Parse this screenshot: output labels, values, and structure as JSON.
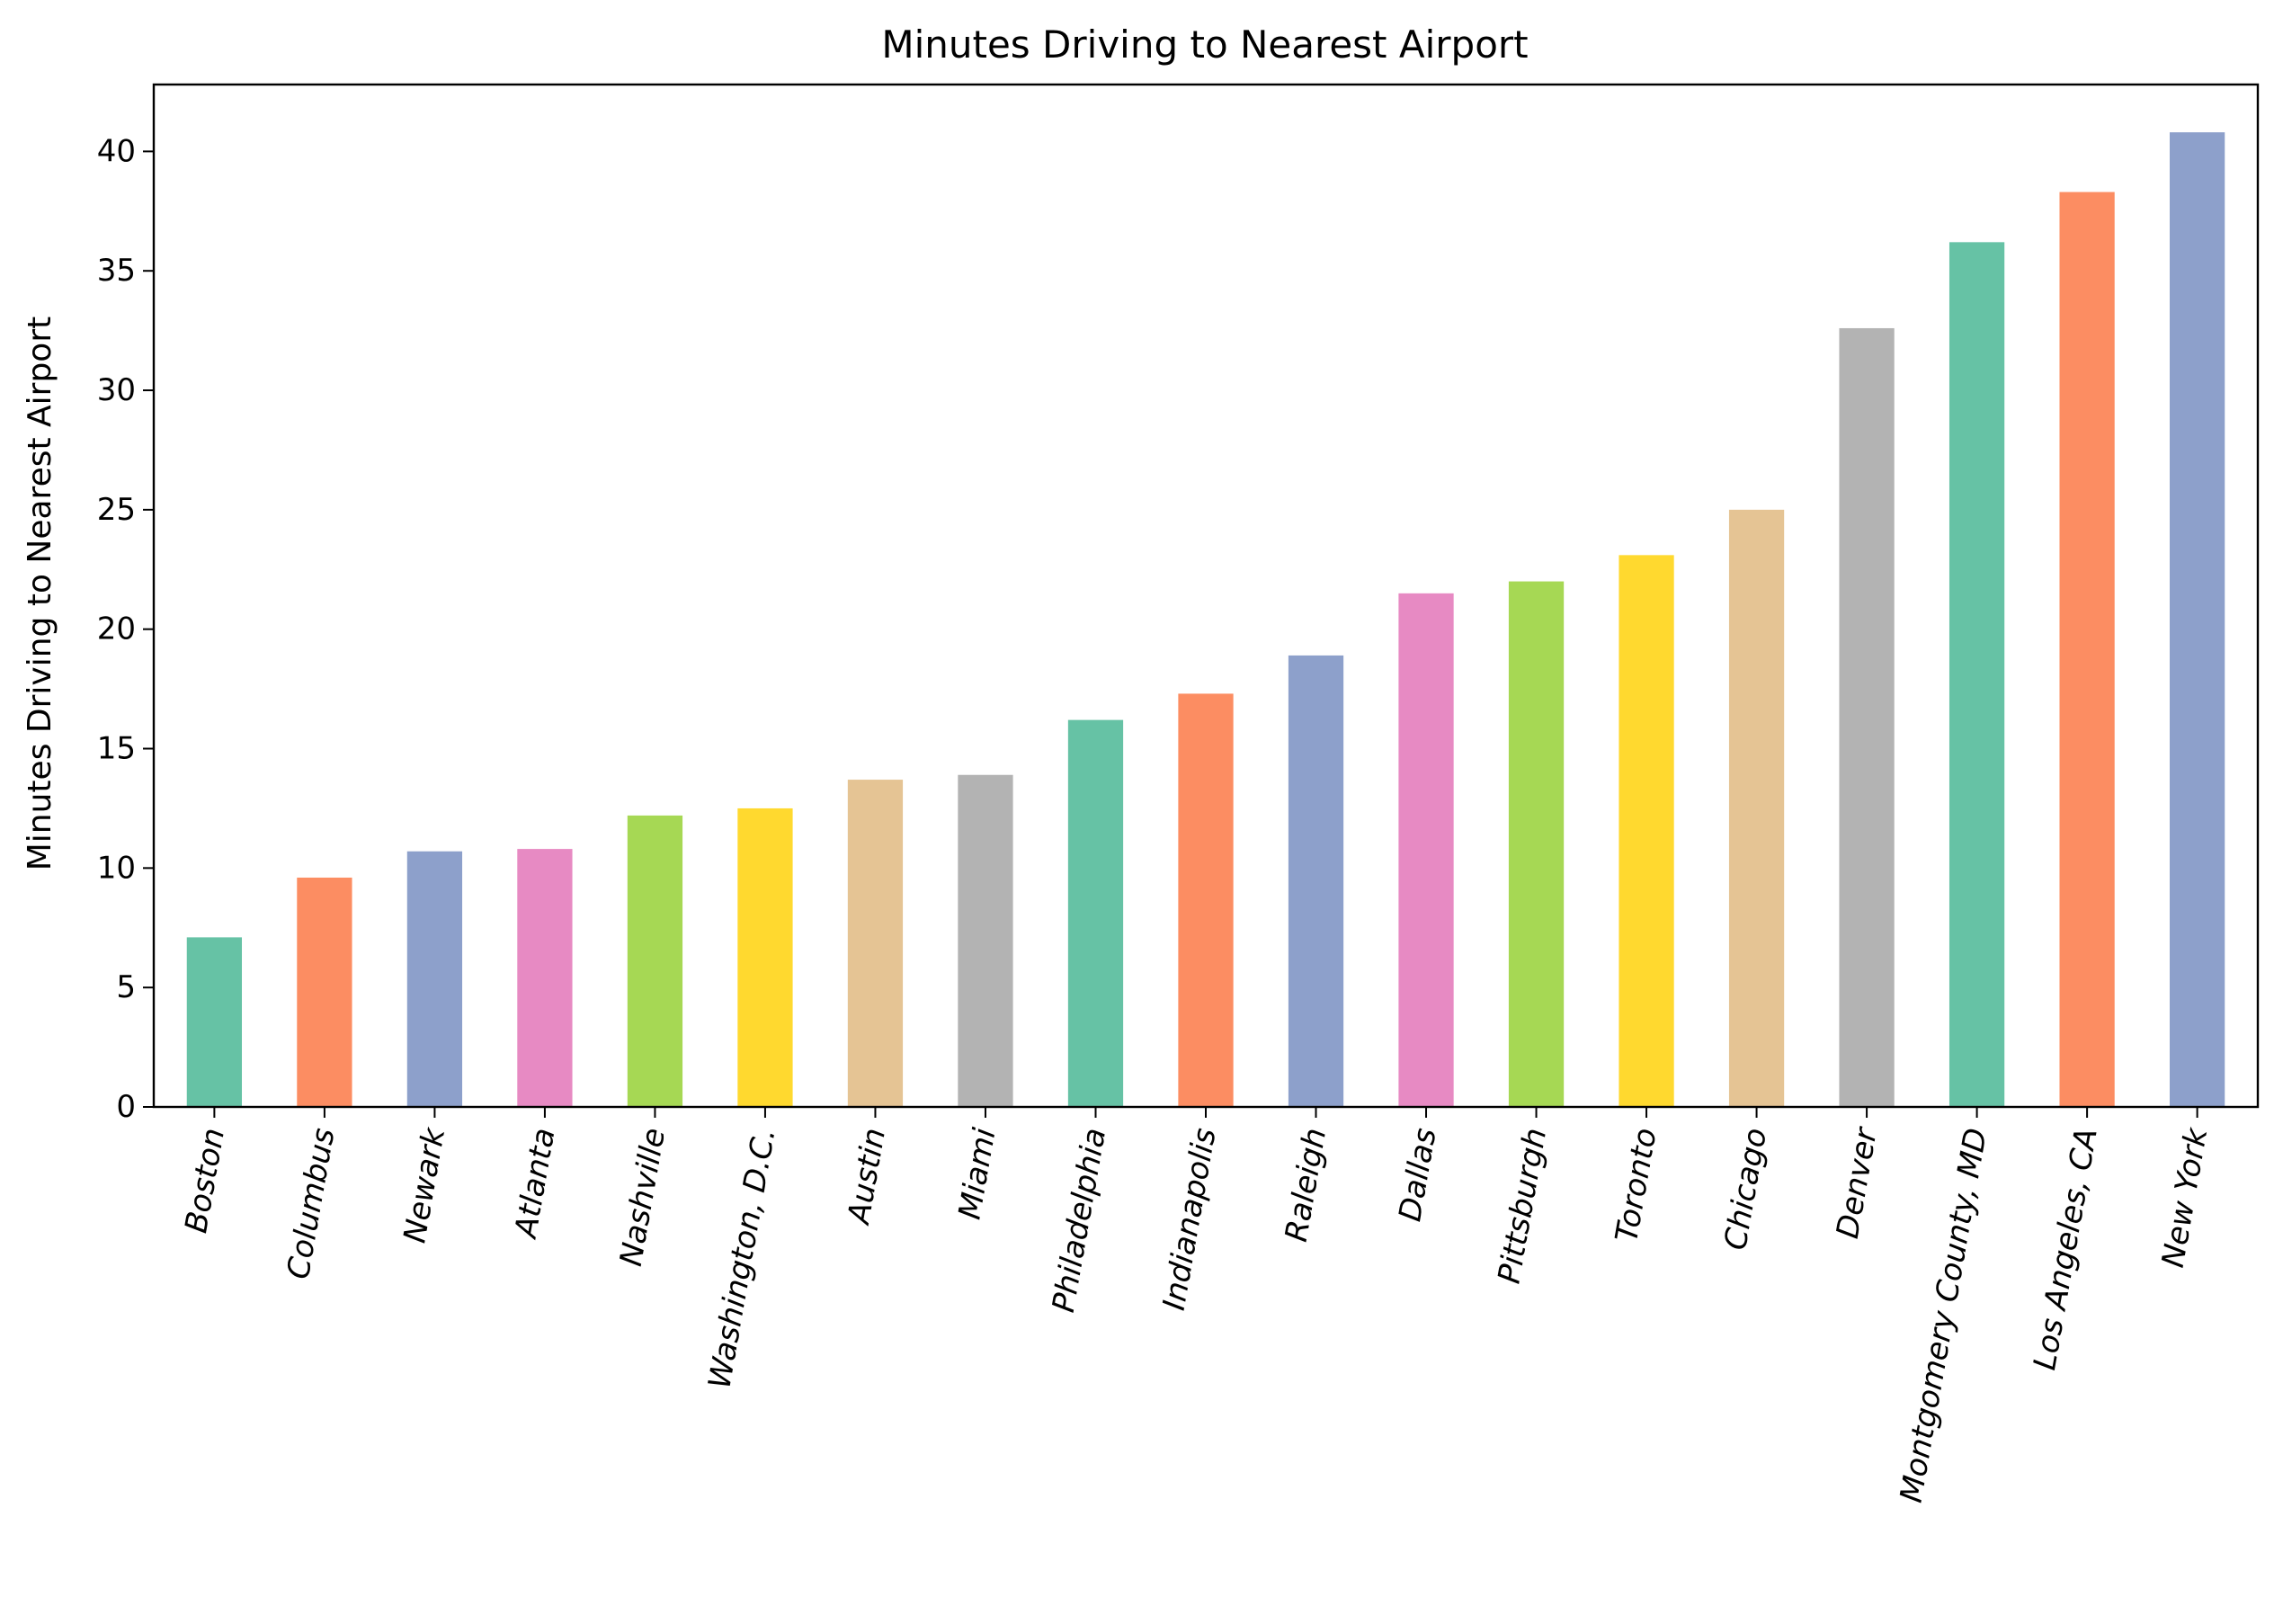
{
  "chart_data": {
    "type": "bar",
    "title": "Minutes Driving to Nearest Airport",
    "xlabel": "",
    "ylabel": "Minutes Driving to Nearest Airport",
    "ylim": [
      0,
      42.8
    ],
    "yticks": [
      0,
      5,
      10,
      15,
      20,
      25,
      30,
      35,
      40
    ],
    "grid": false,
    "legend": "none",
    "categories": [
      "Boston",
      "Columbus",
      "Newark",
      "Atlanta",
      "Nashville",
      "Washington, D.C.",
      "Austin",
      "Miami",
      "Philadelphia",
      "Indianapolis",
      "Raleigh",
      "Dallas",
      "Pittsburgh",
      "Toronto",
      "Chicago",
      "Denver",
      "Montgomery County, MD",
      "Los Angeles, CA",
      "New York"
    ],
    "values": [
      7.1,
      9.6,
      10.7,
      10.8,
      12.2,
      12.5,
      13.7,
      13.9,
      16.2,
      17.3,
      18.9,
      21.5,
      22.0,
      23.1,
      25.0,
      32.6,
      36.2,
      38.3,
      40.8
    ],
    "colors": [
      "#66c2a5",
      "#fc8d62",
      "#8da0cb",
      "#e78ac3",
      "#a6d854",
      "#ffd92f",
      "#e5c494",
      "#b3b3b3",
      "#66c2a5",
      "#fc8d62",
      "#8da0cb",
      "#e78ac3",
      "#a6d854",
      "#ffd92f",
      "#e5c494",
      "#b3b3b3",
      "#66c2a5",
      "#fc8d62",
      "#8da0cb"
    ]
  }
}
